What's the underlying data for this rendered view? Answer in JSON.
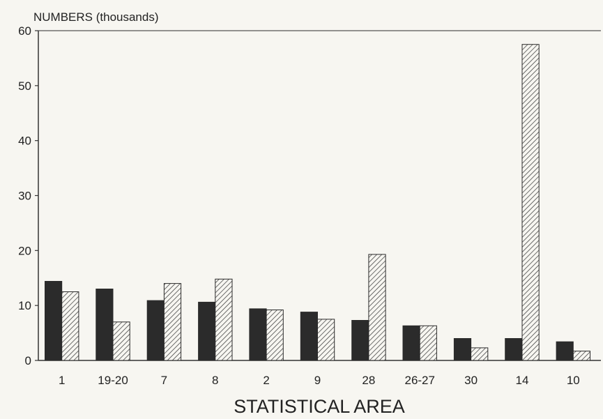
{
  "chart_data": {
    "type": "bar",
    "title": "",
    "ylabel": "NUMBERS (thousands)",
    "xlabel": "STATISTICAL AREA",
    "ylim": [
      0,
      60
    ],
    "yticks": [
      0,
      10,
      20,
      30,
      40,
      50,
      60
    ],
    "categories": [
      "1",
      "19-20",
      "7",
      "8",
      "2",
      "9",
      "28",
      "26-27",
      "30",
      "14",
      "10"
    ],
    "series": [
      {
        "values": [
          14.4,
          13.0,
          10.9,
          10.6,
          9.4,
          8.8,
          7.3,
          6.3,
          4.0,
          4.0,
          3.4
        ],
        "color": "#2b2b2b",
        "fill": "solid"
      },
      {
        "values": [
          12.5,
          7.0,
          14.0,
          14.8,
          9.2,
          7.5,
          19.3,
          6.3,
          2.3,
          57.5,
          1.7
        ],
        "color": "#2b2b2b",
        "fill": "hatched"
      }
    ],
    "grid": false,
    "legend": "none"
  }
}
